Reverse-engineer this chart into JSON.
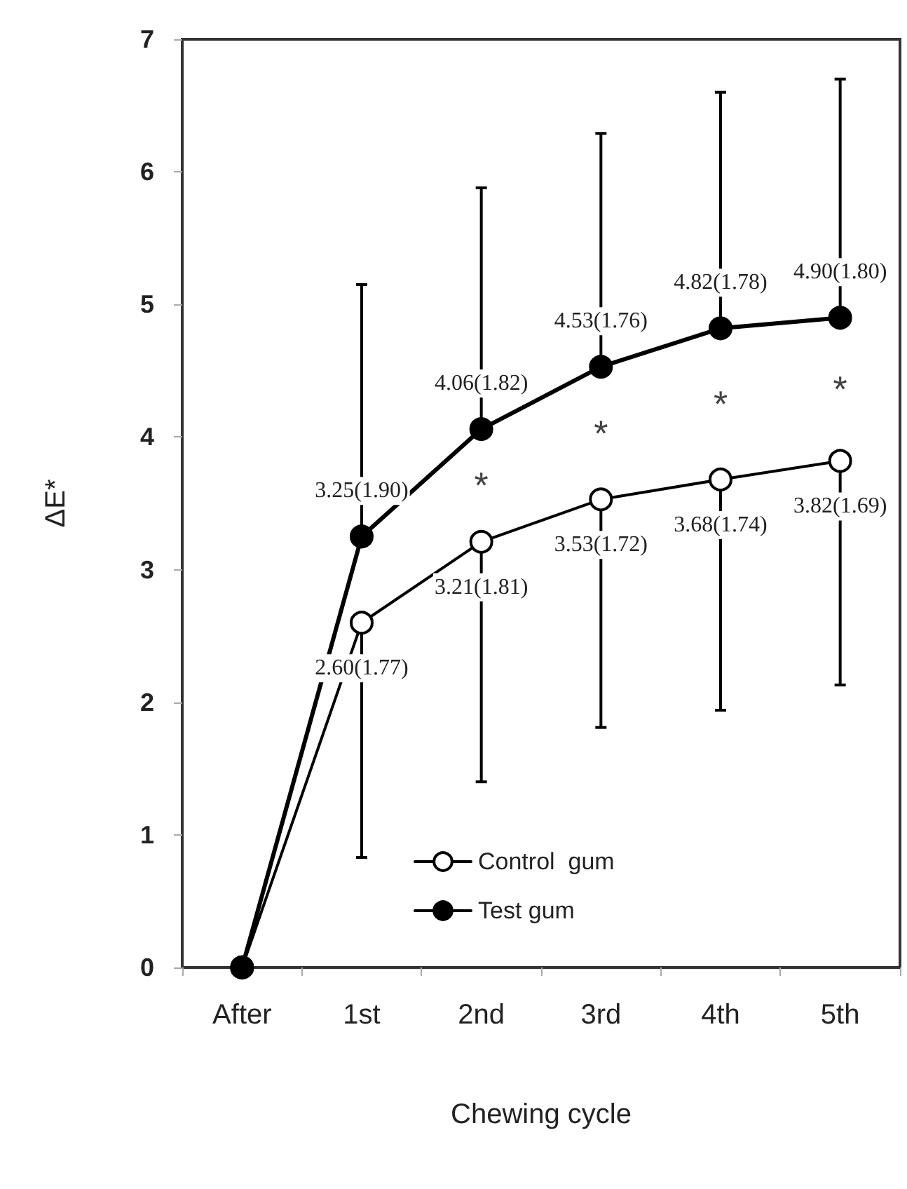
{
  "chart_data": {
    "type": "line",
    "xlabel": "Chewing cycle",
    "ylabel": "ΔE*",
    "categories": [
      "After",
      "1st",
      "2nd",
      "3rd",
      "4th",
      "5th"
    ],
    "series": [
      {
        "name": "Control  gum",
        "color": "#000000",
        "values": [
          0,
          2.6,
          3.21,
          3.53,
          3.68,
          3.82
        ],
        "errors": [
          null,
          [
            0.83,
            2.6
          ],
          [
            1.4,
            3.21
          ],
          [
            1.81,
            3.53
          ],
          [
            1.94,
            3.68
          ],
          [
            2.13,
            3.82
          ]
        ],
        "value_labels": [
          null,
          "2.60(1.77)",
          "3.21(1.81)",
          "3.53(1.72)",
          "3.68(1.74)",
          "3.82(1.69)"
        ]
      },
      {
        "name": "Test gum",
        "color": "#000000",
        "values": [
          0,
          3.25,
          4.06,
          4.53,
          4.82,
          4.9
        ],
        "errors": [
          null,
          [
            3.25,
            5.15
          ],
          [
            4.06,
            5.88
          ],
          [
            4.53,
            6.29
          ],
          [
            4.82,
            6.6
          ],
          [
            4.9,
            6.7
          ]
        ],
        "value_labels": [
          null,
          "3.25(1.90)",
          "4.06(1.82)",
          "4.53(1.76)",
          "4.82(1.78)",
          "4.90(1.80)"
        ]
      }
    ],
    "ylim": [
      0,
      7
    ],
    "yticks": [
      0,
      1,
      2,
      3,
      4,
      5,
      6,
      7
    ],
    "annotations": [
      "*",
      "*",
      "*",
      "*"
    ],
    "legend": "bottom",
    "marker": "circle",
    "grid": false
  }
}
